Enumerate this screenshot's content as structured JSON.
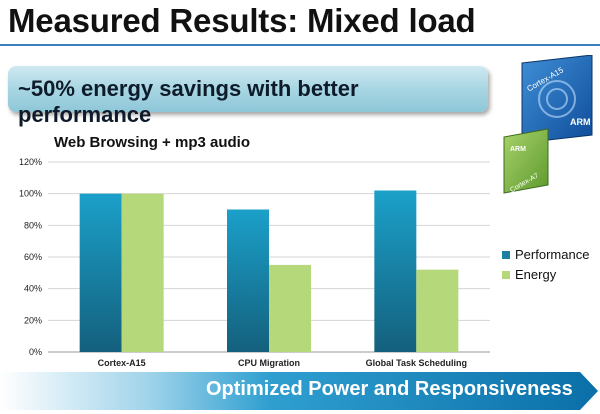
{
  "slide": {
    "title": "Measured Results: Mixed load",
    "callout": "~50% energy savings with better performance",
    "footer": "Optimized Power and Responsiveness"
  },
  "graphic": {
    "big_chip_label": "Cortex-A15",
    "big_chip_logo": "ARM",
    "little_chip_label": "Cortex-A7",
    "little_chip_logo": "ARM"
  },
  "colors": {
    "performance": "#1f7f9f",
    "energy": "#b5d97a",
    "title_rule": "#3c7fc0",
    "footer": "#1a8fbf"
  },
  "chart_data": {
    "type": "bar",
    "title": "Web Browsing + mp3 audio",
    "categories": [
      "Cortex-A15",
      "CPU Migration",
      "Global Task Scheduling"
    ],
    "series": [
      {
        "name": "Performance",
        "values": [
          100,
          90,
          102
        ]
      },
      {
        "name": "Energy",
        "values": [
          100,
          55,
          52
        ]
      }
    ],
    "ylim": [
      0,
      120
    ],
    "ytick_labels": [
      "0%",
      "20%",
      "40%",
      "60%",
      "80%",
      "100%",
      "120%"
    ],
    "xlabel": "",
    "ylabel": "",
    "grid": true,
    "legend": "right"
  }
}
